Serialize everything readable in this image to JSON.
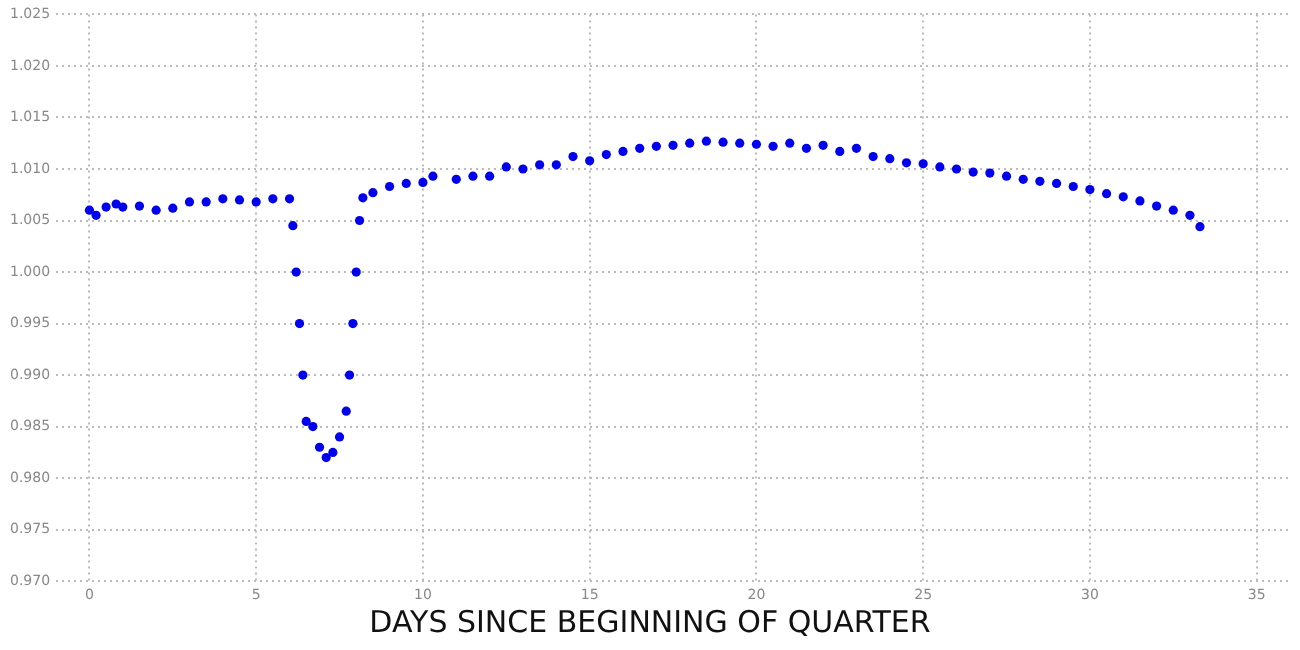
{
  "chart_data": {
    "type": "scatter",
    "xlabel": "DAYS SINCE BEGINNING OF QUARTER",
    "xlim": [
      -1,
      36
    ],
    "xticks": [
      0,
      5,
      10,
      15,
      20,
      25,
      30,
      35
    ],
    "ylim": [
      0.97,
      1.025
    ],
    "yticks": [
      {
        "value": 0.97,
        "label": "0.970"
      },
      {
        "value": 0.975,
        "label": "0.975"
      },
      {
        "value": 0.98,
        "label": "0.980"
      },
      {
        "value": 0.985,
        "label": "0.985"
      },
      {
        "value": 0.99,
        "label": "0.990"
      },
      {
        "value": 0.995,
        "label": "0.995"
      },
      {
        "value": 1,
        "label": "1.000"
      },
      {
        "value": 1.005,
        "label": "1.005"
      },
      {
        "value": 1.01,
        "label": "1.010"
      },
      {
        "value": 1.015,
        "label": "1.015"
      },
      {
        "value": 1.02,
        "label": "1.020"
      },
      {
        "value": 1.025,
        "label": "1.025"
      }
    ],
    "grid": true,
    "marker": "circle",
    "series": [
      {
        "color": "#0000ee",
        "x": [
          0,
          0.2,
          0.5,
          0.8,
          1,
          1.5,
          2,
          2.5,
          3,
          3.5,
          4,
          4.5,
          5,
          5.5,
          6,
          6.1,
          6.2,
          6.3,
          6.4,
          6.5,
          6.7,
          6.9,
          7.1,
          7.3,
          7.5,
          7.7,
          7.8,
          7.9,
          8,
          8.1,
          8.2,
          8.5,
          9,
          9.5,
          10,
          10.3,
          11,
          11.5,
          12,
          12.5,
          13,
          13.5,
          14,
          14.5,
          15,
          15.5,
          16,
          16.5,
          17,
          17.5,
          18,
          18.5,
          19,
          19.5,
          20,
          20.5,
          21,
          21.5,
          22,
          22.5,
          23,
          23.5,
          24,
          24.5,
          25,
          25.5,
          26,
          26.5,
          27,
          27.5,
          28,
          28.5,
          29,
          29.5,
          30,
          30.5,
          31,
          31.5,
          32,
          32.5,
          33,
          33.3
        ],
        "values": [
          1.006,
          1.0055,
          1.0063,
          1.0066,
          1.0063,
          1.0064,
          1.006,
          1.0062,
          1.0068,
          1.0068,
          1.0071,
          1.007,
          1.0068,
          1.0071,
          1.0071,
          1.0045,
          1.0,
          0.995,
          0.99,
          0.9855,
          0.985,
          0.983,
          0.982,
          0.9825,
          0.984,
          0.9865,
          0.99,
          0.995,
          1.0,
          1.005,
          1.0072,
          1.0077,
          1.0083,
          1.0086,
          1.0087,
          1.0093,
          1.009,
          1.0093,
          1.0093,
          1.0102,
          1.01,
          1.0104,
          1.0104,
          1.0112,
          1.0108,
          1.0114,
          1.0117,
          1.012,
          1.0122,
          1.0123,
          1.0125,
          1.0127,
          1.0126,
          1.0125,
          1.0124,
          1.0122,
          1.0125,
          1.012,
          1.0123,
          1.0117,
          1.012,
          1.0112,
          1.011,
          1.0106,
          1.0105,
          1.0102,
          1.01,
          1.0097,
          1.0096,
          1.0093,
          1.009,
          1.0088,
          1.0086,
          1.0083,
          1.008,
          1.0076,
          1.0073,
          1.0069,
          1.0064,
          1.006,
          1.0055,
          1.0044
        ]
      }
    ]
  }
}
